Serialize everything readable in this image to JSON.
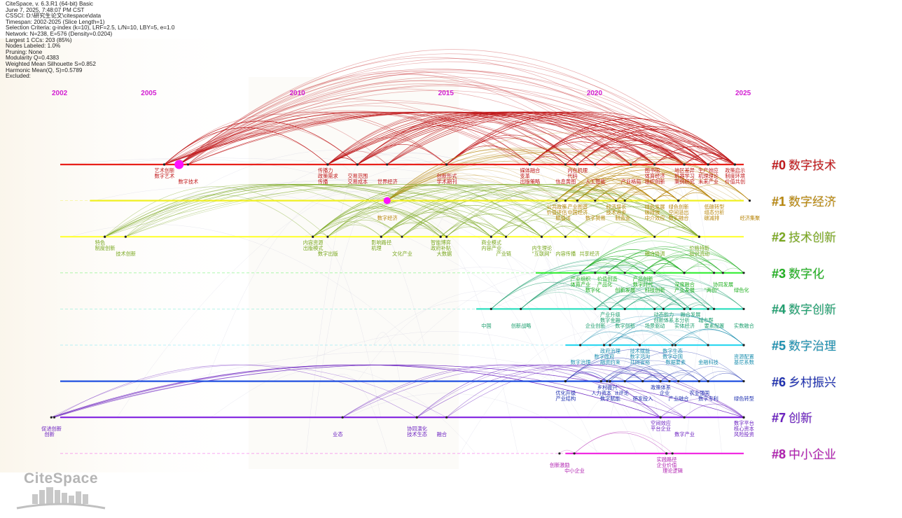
{
  "meta": {
    "lines": [
      "CiteSpace, v. 6.3.R1 (64-bit) Basic",
      "June 7, 2025, 7:48:07 PM CST",
      "CSSCI: D:\\研究生论文\\citespace\\data",
      "Timespan: 2002-2025 (Slice Length=1)",
      "Selection Criteria: g-index (k=10), LRF=2.5, L/N=10, LBY=5, e=1.0",
      "Network: N=238, E=576 (Density=0.0204)",
      "Largest 1 CCs: 203 (85%)",
      "Nodes Labeled: 1.0%",
      "Pruning: None",
      "Modularity Q=0.4383",
      "Weighted Mean Silhouette S=0.852",
      "Harmonic Mean(Q, S)=0.5789",
      "Excluded:"
    ]
  },
  "years": [
    "2002",
    "2005",
    "2010",
    "2015",
    "2020",
    "2025"
  ],
  "year_range": [
    2002,
    2025
  ],
  "clusters": [
    {
      "id": "#0",
      "name": "数字技术",
      "color": "#c0181a",
      "line_color": "#e8201a",
      "start": 2002,
      "big_node": 2006,
      "keywords": [
        {
          "t": "艺术创新",
          "y": 2005.5,
          "r": 0
        },
        {
          "t": "数字艺术",
          "y": 2005.5,
          "r": 1
        },
        {
          "t": "数字技术",
          "y": 2006.3,
          "r": 2
        },
        {
          "t": "传播力",
          "y": 2011,
          "r": 0
        },
        {
          "t": "政策需求",
          "y": 2011,
          "r": 1
        },
        {
          "t": "传播",
          "y": 2011,
          "r": 2
        },
        {
          "t": "交易范围",
          "y": 2012,
          "r": 1
        },
        {
          "t": "交易成本",
          "y": 2012,
          "r": 2
        },
        {
          "t": "世界经济",
          "y": 2013,
          "r": 2
        },
        {
          "t": "创新形式",
          "y": 2015,
          "r": 1
        },
        {
          "t": "学术期刊",
          "y": 2015,
          "r": 2
        },
        {
          "t": "媒体融合",
          "y": 2017.8,
          "r": 0
        },
        {
          "t": "变革",
          "y": 2017.8,
          "r": 1
        },
        {
          "t": "出版策略",
          "y": 2017.8,
          "r": 2
        },
        {
          "t": "内在机理",
          "y": 2019.4,
          "r": 0
        },
        {
          "t": "代码",
          "y": 2019.4,
          "r": 1
        },
        {
          "t": "信息黄图",
          "y": 2019,
          "r": 2
        },
        {
          "t": "人工智能",
          "y": 2020,
          "r": 2
        },
        {
          "t": "产业格局",
          "y": 2021.2,
          "r": 2
        },
        {
          "t": "图书馆",
          "y": 2022,
          "r": 0
        },
        {
          "t": "体育经济",
          "y": 2022,
          "r": 1
        },
        {
          "t": "组织创新",
          "y": 2022,
          "r": 2
        },
        {
          "t": "地区差异",
          "y": 2023,
          "r": 0
        },
        {
          "t": "机器学习",
          "y": 2023,
          "r": 1
        },
        {
          "t": "案例研究",
          "y": 2023,
          "r": 2
        },
        {
          "t": "生产效应",
          "y": 2023.8,
          "r": 0
        },
        {
          "t": "机理理论",
          "y": 2023.8,
          "r": 1
        },
        {
          "t": "未来产业",
          "y": 2023.8,
          "r": 2
        },
        {
          "t": "政策启示",
          "y": 2024.7,
          "r": 0
        },
        {
          "t": "制度环境",
          "y": 2024.7,
          "r": 1
        },
        {
          "t": "价值共创",
          "y": 2024.7,
          "r": 2
        }
      ]
    },
    {
      "id": "#1",
      "name": "数字经济",
      "color": "#b8860b",
      "line_color": "#f0f020",
      "start": 2003,
      "big_node": 2013,
      "keywords": [
        {
          "t": "数字经济",
          "y": 2013,
          "r": 2
        },
        {
          "t": "公共政策",
          "y": 2018.7,
          "r": 0
        },
        {
          "t": "价值评估",
          "y": 2018.7,
          "r": 1
        },
        {
          "t": "产业图谱",
          "y": 2019.4,
          "r": 0
        },
        {
          "t": "中国经济",
          "y": 2019.4,
          "r": 1
        },
        {
          "t": "赋值法",
          "y": 2019,
          "r": 2
        },
        {
          "t": "数字贸易",
          "y": 2020,
          "r": 2
        },
        {
          "t": "经济增长",
          "y": 2020.7,
          "r": 0
        },
        {
          "t": "技术进步",
          "y": 2020.7,
          "r": 1
        },
        {
          "t": "制造业",
          "y": 2021,
          "r": 2
        },
        {
          "t": "绿色发展",
          "y": 2022,
          "r": 0
        },
        {
          "t": "碳排放",
          "y": 2022,
          "r": 1
        },
        {
          "t": "中介效应",
          "y": 2022,
          "r": 2
        },
        {
          "t": "绿色创新",
          "y": 2022.8,
          "r": 0
        },
        {
          "t": "空间溢出",
          "y": 2022.8,
          "r": 1
        },
        {
          "t": "数实融合",
          "y": 2022.8,
          "r": 2
        },
        {
          "t": "低碳转型",
          "y": 2024,
          "r": 0
        },
        {
          "t": "组态分析",
          "y": 2024,
          "r": 1
        },
        {
          "t": "碳减排",
          "y": 2024,
          "r": 2
        },
        {
          "t": "经济集聚",
          "y": 2025.2,
          "r": 2
        }
      ]
    },
    {
      "id": "#2",
      "name": "技术创新",
      "color": "#7aa820",
      "line_color": "#ffff33",
      "start": 2002,
      "big_node": null,
      "keywords": [
        {
          "t": "特色",
          "y": 2003.5,
          "r": 0
        },
        {
          "t": "制度创新",
          "y": 2003.5,
          "r": 1
        },
        {
          "t": "技术创新",
          "y": 2004.2,
          "r": 2
        },
        {
          "t": "内容资源",
          "y": 2010.5,
          "r": 0
        },
        {
          "t": "出版模式",
          "y": 2010.5,
          "r": 1
        },
        {
          "t": "数字出版",
          "y": 2011,
          "r": 2
        },
        {
          "t": "影响路径",
          "y": 2012.8,
          "r": 0
        },
        {
          "t": "机理",
          "y": 2012.8,
          "r": 1
        },
        {
          "t": "文化产业",
          "y": 2013.5,
          "r": 2
        },
        {
          "t": "智能博弈",
          "y": 2014.8,
          "r": 0
        },
        {
          "t": "政府补贴",
          "y": 2014.8,
          "r": 1
        },
        {
          "t": "大数据",
          "y": 2015,
          "r": 2
        },
        {
          "t": "商业模式",
          "y": 2016.5,
          "r": 0
        },
        {
          "t": "内容产业",
          "y": 2016.5,
          "r": 1
        },
        {
          "t": "产业链",
          "y": 2017,
          "r": 2
        },
        {
          "t": "内生理论",
          "y": 2018.2,
          "r": 1
        },
        {
          "t": "\"互联网\"",
          "y": 2018.2,
          "r": 2
        },
        {
          "t": "内容传播",
          "y": 2019,
          "r": 2
        },
        {
          "t": "共享经济",
          "y": 2019.8,
          "r": 2
        },
        {
          "t": "耦合协调",
          "y": 2022,
          "r": 2
        },
        {
          "t": "价格持新",
          "y": 2023.5,
          "r": 1
        },
        {
          "t": "知识流动",
          "y": 2023.5,
          "r": 2
        }
      ]
    },
    {
      "id": "#3",
      "name": "数字化",
      "color": "#20b020",
      "line_color": "#33ee33",
      "start": 2018,
      "big_node": null,
      "keywords": [
        {
          "t": "产业组织",
          "y": 2019.5,
          "r": 0
        },
        {
          "t": "体育产业",
          "y": 2019.5,
          "r": 1
        },
        {
          "t": "数字化",
          "y": 2020,
          "r": 2
        },
        {
          "t": "价值创造",
          "y": 2020.4,
          "r": 0
        },
        {
          "t": "产品化",
          "y": 2020.4,
          "r": 1
        },
        {
          "t": "创新发展",
          "y": 2021,
          "r": 2
        },
        {
          "t": "产品创新",
          "y": 2021.6,
          "r": 0
        },
        {
          "t": "数字时代",
          "y": 2021.6,
          "r": 1
        },
        {
          "t": "科技创新",
          "y": 2022,
          "r": 2
        },
        {
          "t": "深度融合",
          "y": 2023,
          "r": 1
        },
        {
          "t": "产业发展",
          "y": 2023,
          "r": 2
        },
        {
          "t": "协同发展",
          "y": 2024.3,
          "r": 1
        },
        {
          "t": "\"两创\"",
          "y": 2024,
          "r": 2
        },
        {
          "t": "绿色化",
          "y": 2025,
          "r": 2
        }
      ]
    },
    {
      "id": "#4",
      "name": "数字创新",
      "color": "#20a070",
      "line_color": "#30e0c0",
      "start": 2016,
      "big_node": null,
      "keywords": [
        {
          "t": "中国",
          "y": 2016.5,
          "r": 2
        },
        {
          "t": "创新战略",
          "y": 2017.5,
          "r": 2
        },
        {
          "t": "产业升级",
          "y": 2020.5,
          "r": 0
        },
        {
          "t": "数字金融",
          "y": 2020.5,
          "r": 1
        },
        {
          "t": "企业创新",
          "y": 2020,
          "r": 2
        },
        {
          "t": "数字创新",
          "y": 2021,
          "r": 2
        },
        {
          "t": "动态能力",
          "y": 2022.3,
          "r": 0
        },
        {
          "t": "创新体系",
          "y": 2022.3,
          "r": 1
        },
        {
          "t": "场景驱动",
          "y": 2022,
          "r": 2
        },
        {
          "t": "融合发展",
          "y": 2023.2,
          "r": 0
        },
        {
          "t": "本分析",
          "y": 2023,
          "r": 1
        },
        {
          "t": "实体经济",
          "y": 2023,
          "r": 2
        },
        {
          "t": "城市群",
          "y": 2023.8,
          "r": 1
        },
        {
          "t": "要素配置",
          "y": 2024,
          "r": 2
        },
        {
          "t": "实数融合",
          "y": 2025,
          "r": 2
        }
      ]
    },
    {
      "id": "#5",
      "name": "数字治理",
      "color": "#1e90b0",
      "line_color": "#30d8f0",
      "start": 2019,
      "big_node": null,
      "keywords": [
        {
          "t": "政府治理",
          "y": 2020.5,
          "r": 0
        },
        {
          "t": "数字政府",
          "y": 2020.3,
          "r": 1
        },
        {
          "t": "数字治理",
          "y": 2019.5,
          "r": 2
        },
        {
          "t": "技术赋能",
          "y": 2021.5,
          "r": 0
        },
        {
          "t": "数字鸿沟",
          "y": 2021.5,
          "r": 1
        },
        {
          "t": "融资约束",
          "y": 2020.5,
          "r": 2
        },
        {
          "t": "数字生态",
          "y": 2022.6,
          "r": 0
        },
        {
          "t": "数字中国",
          "y": 2022.6,
          "r": 1
        },
        {
          "t": "共同富裕",
          "y": 2021.5,
          "r": 2
        },
        {
          "t": "数据要素",
          "y": 2022.7,
          "r": 2
        },
        {
          "t": "金融科技",
          "y": 2023.8,
          "r": 2
        },
        {
          "t": "资源配置",
          "y": 2025,
          "r": 1
        },
        {
          "t": "基尼系数",
          "y": 2025,
          "r": 2
        }
      ]
    },
    {
      "id": "#6",
      "name": "乡村振兴",
      "color": "#1e30b0",
      "line_color": "#2050e0",
      "start": 2002,
      "big_node": null,
      "keywords": [
        {
          "t": "乡村振兴",
          "y": 2020.4,
          "r": 0
        },
        {
          "t": "优化升级",
          "y": 2019,
          "r": 1
        },
        {
          "t": "产业结构",
          "y": 2019,
          "r": 2
        },
        {
          "t": "人力资本",
          "y": 2020.2,
          "r": 1
        },
        {
          "t": "数字赋能",
          "y": 2020.5,
          "r": 2
        },
        {
          "t": "it评论",
          "y": 2021,
          "r": 1
        },
        {
          "t": "研发投入",
          "y": 2021.6,
          "r": 2
        },
        {
          "t": "政策体系",
          "y": 2022.2,
          "r": 0
        },
        {
          "t": "企业",
          "y": 2022.5,
          "r": 1
        },
        {
          "t": "产业融合",
          "y": 2022.8,
          "r": 2
        },
        {
          "t": "农业强国",
          "y": 2023.5,
          "r": 1
        },
        {
          "t": "数字专利",
          "y": 2023.8,
          "r": 2
        },
        {
          "t": "绿色转型",
          "y": 2025,
          "r": 2
        }
      ]
    },
    {
      "id": "#7",
      "name": "创新",
      "color": "#6a1fc0",
      "line_color": "#8020e0",
      "start": 2002,
      "big_node": null,
      "keywords": [
        {
          "t": "促进创新",
          "y": 2001.7,
          "r": 1
        },
        {
          "t": "创新",
          "y": 2001.8,
          "r": 2
        },
        {
          "t": "业态",
          "y": 2011.5,
          "r": 2
        },
        {
          "t": "协同演化",
          "y": 2014,
          "r": 1
        },
        {
          "t": "技术生态",
          "y": 2014,
          "r": 2
        },
        {
          "t": "融合",
          "y": 2015,
          "r": 2
        },
        {
          "t": "空间效应",
          "y": 2022.2,
          "r": 0
        },
        {
          "t": "平台企业",
          "y": 2022.2,
          "r": 1
        },
        {
          "t": "数字产业",
          "y": 2023,
          "r": 2
        },
        {
          "t": "数字平台",
          "y": 2025,
          "r": 0
        },
        {
          "t": "核心资本",
          "y": 2025,
          "r": 1
        },
        {
          "t": "风险投资",
          "y": 2025,
          "r": 2
        }
      ]
    },
    {
      "id": "#8",
      "name": "中小企业",
      "color": "#b020b0",
      "line_color": "#f020e0",
      "start": 2019,
      "big_node": null,
      "keywords": [
        {
          "t": "创新激励",
          "y": 2018.8,
          "r": 1
        },
        {
          "t": "中小企业",
          "y": 2019.3,
          "r": 2
        },
        {
          "t": "实践路径",
          "y": 2022.4,
          "r": 0
        },
        {
          "t": "企业价值",
          "y": 2022.4,
          "r": 1
        },
        {
          "t": "理论逻辑",
          "y": 2022.6,
          "r": 2
        }
      ]
    }
  ],
  "logo": {
    "text": "CiteSpace"
  }
}
